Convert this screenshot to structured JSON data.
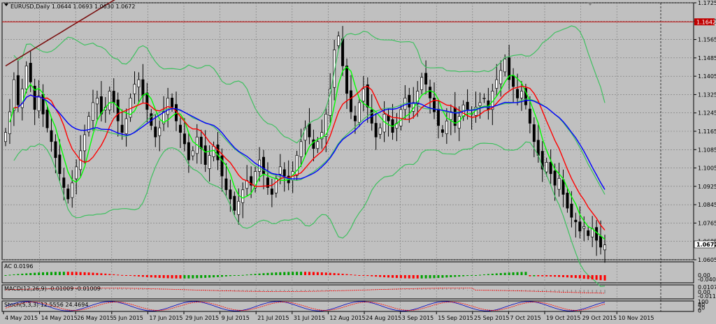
{
  "chart_data": {
    "type": "candlestick",
    "symbol_label": "EURUSD,Daily",
    "ohlc_label": "1.0644 1.0693 1.0630 1.0672",
    "last_price_label": "1.0672",
    "hline_label": "1.1642",
    "hline_value": 1.1642,
    "ylim": [
      1.0605,
      1.1725
    ],
    "price_ticks": [
      "1.1725",
      "1.1645",
      "1.1565",
      "1.1485",
      "1.1405",
      "1.1325",
      "1.1245",
      "1.1165",
      "1.1085",
      "1.1005",
      "1.0925",
      "1.0845",
      "1.0765",
      "1.0685",
      "1.0605"
    ],
    "x_labels": [
      "4 May 2015",
      "14 May 2015",
      "26 May 2015",
      "5 Jun 2015",
      "17 Jun 2015",
      "29 Jun 2015",
      "9 Jul 2015",
      "21 Jul 2015",
      "31 Jul 2015",
      "12 Aug 2015",
      "24 Aug 2015",
      "3 Sep 2015",
      "15 Sep 2015",
      "25 Sep 2015",
      "7 Oct 2015",
      "19 Oct 2015",
      "29 Oct 2015",
      "10 Nov 2015"
    ],
    "close": [
      1.116,
      1.125,
      1.139,
      1.128,
      1.135,
      1.145,
      1.138,
      1.126,
      1.132,
      1.124,
      1.118,
      1.112,
      1.105,
      1.098,
      1.092,
      1.087,
      1.094,
      1.101,
      1.108,
      1.115,
      1.123,
      1.129,
      1.131,
      1.124,
      1.127,
      1.134,
      1.129,
      1.121,
      1.116,
      1.122,
      1.131,
      1.137,
      1.139,
      1.132,
      1.126,
      1.119,
      1.114,
      1.118,
      1.125,
      1.131,
      1.127,
      1.121,
      1.116,
      1.111,
      1.104,
      1.108,
      1.114,
      1.109,
      1.102,
      1.106,
      1.11,
      1.104,
      1.097,
      1.091,
      1.087,
      1.082,
      1.086,
      1.091,
      1.095,
      1.093,
      1.099,
      1.104,
      1.098,
      1.092,
      1.089,
      1.096,
      1.101,
      1.097,
      1.094,
      1.099,
      1.106,
      1.112,
      1.118,
      1.114,
      1.109,
      1.112,
      1.116,
      1.124,
      1.135,
      1.152,
      1.158,
      1.145,
      1.133,
      1.125,
      1.121,
      1.129,
      1.135,
      1.127,
      1.12,
      1.114,
      1.118,
      1.124,
      1.121,
      1.116,
      1.12,
      1.126,
      1.131,
      1.127,
      1.129,
      1.134,
      1.14,
      1.137,
      1.131,
      1.125,
      1.119,
      1.116,
      1.121,
      1.125,
      1.119,
      1.123,
      1.128,
      1.126,
      1.124,
      1.127,
      1.129,
      1.131,
      1.126,
      1.134,
      1.139,
      1.143,
      1.148,
      1.139,
      1.136,
      1.131,
      1.134,
      1.128,
      1.12,
      1.112,
      1.106,
      1.1,
      1.103,
      1.098,
      1.093,
      1.096,
      1.089,
      1.083,
      1.079,
      1.077,
      1.073,
      1.075,
      1.071,
      1.074,
      1.069,
      1.066,
      1.067
    ]
  },
  "indicators": {
    "ac_label": "AC 0.0196",
    "ac_ticks": [
      "0.00",
      "-0.04082"
    ],
    "macd_label": "MACD(12,26,9) -0.01009 -0.01009",
    "macd_ticks": [
      "0.01078",
      "0.00",
      "-0.01109"
    ],
    "stoch_label": "Stoch(5,3,3) 12.5556 24.4694",
    "stoch_ticks": [
      "100",
      "80",
      "20",
      "0"
    ]
  },
  "colors": {
    "background": "#c0c0c0",
    "bull_candle": "#ffffff",
    "bear_candle": "#000000",
    "ma_dark": "#7a1010",
    "ma_red": "#ff0000",
    "ma_green": "#00ff00",
    "ma_blue": "#0000ff",
    "bollinger": "#40c060",
    "hline": "#c00000"
  }
}
